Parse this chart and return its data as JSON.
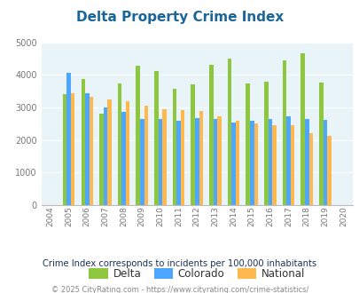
{
  "title": "Delta Property Crime Index",
  "years": [
    2004,
    2005,
    2006,
    2007,
    2008,
    2009,
    2010,
    2011,
    2012,
    2013,
    2014,
    2015,
    2016,
    2017,
    2018,
    2019,
    2020
  ],
  "delta": [
    null,
    3400,
    3870,
    2800,
    3750,
    4290,
    4110,
    3570,
    3700,
    4320,
    4510,
    3750,
    3800,
    4440,
    4680,
    3760,
    null
  ],
  "colorado": [
    null,
    4060,
    3450,
    3000,
    2870,
    2660,
    2660,
    2600,
    2670,
    2640,
    2550,
    2600,
    2640,
    2730,
    2660,
    2610,
    null
  ],
  "national": [
    null,
    3450,
    3340,
    3250,
    3200,
    3050,
    2960,
    2930,
    2890,
    2730,
    2580,
    2500,
    2470,
    2450,
    2210,
    2120,
    null
  ],
  "delta_color": "#8dc63f",
  "colorado_color": "#4da6ff",
  "national_color": "#ffb84d",
  "bg_color": "#e8f4f8",
  "ylim": [
    0,
    5000
  ],
  "yticks": [
    0,
    1000,
    2000,
    3000,
    4000,
    5000
  ],
  "subtitle": "Crime Index corresponds to incidents per 100,000 inhabitants",
  "footer": "© 2025 CityRating.com - https://www.cityrating.com/crime-statistics/",
  "legend_labels": [
    "Delta",
    "Colorado",
    "National"
  ],
  "title_color": "#1a6699",
  "subtitle_color": "#1a3355",
  "footer_color": "#888888"
}
